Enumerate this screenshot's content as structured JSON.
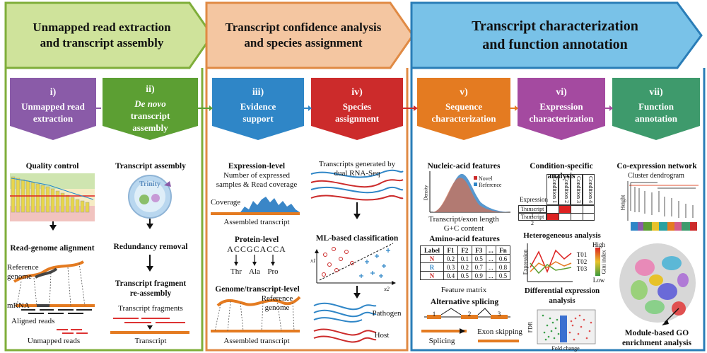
{
  "sections": [
    {
      "title_line1": "Unmapped read extraction",
      "title_line2": "and transcript assembly"
    },
    {
      "title_line1": "Transcript confidence analysis",
      "title_line2": "and species assignment"
    },
    {
      "title_line1": "Transcript characterization",
      "title_line2": "and function annotation"
    }
  ],
  "steps": [
    {
      "num": "i)",
      "label_line1": "Unmapped read",
      "label_line2": "extraction"
    },
    {
      "num": "ii)",
      "label_line1": "De novo",
      "label_line2": "transcript",
      "label_line3": "assembly"
    },
    {
      "num": "iii)",
      "label_line1": "Evidence",
      "label_line2": "support"
    },
    {
      "num": "iv)",
      "label_line1": "Species",
      "label_line2": "assignment"
    },
    {
      "num": "v)",
      "label_line1": "Sequence",
      "label_line2": "characterization"
    },
    {
      "num": "vi)",
      "label_line1": "Expression",
      "label_line2": "characterization"
    },
    {
      "num": "vii)",
      "label_line1": "Function",
      "label_line2": "annotation"
    }
  ],
  "col1": {
    "quality_control": "Quality control",
    "read_genome_alignment": "Read-genome alignment",
    "reference_genome": "Reference genome",
    "mrna": "mRNA",
    "aligned_reads": "Aligned reads",
    "unmapped_reads": "Unmapped reads"
  },
  "col2": {
    "transcript_assembly": "Transcript assembly",
    "trinity_logo": "Trinity",
    "redundancy_removal": "Redundancy removal",
    "fragment_reassembly_line1": "Transcript fragment",
    "fragment_reassembly_line2": "re-assembly",
    "transcript_fragments": "Transcript fragments",
    "transcript": "Transcript"
  },
  "col3": {
    "expression_level": "Expression-level",
    "expressed_desc_line1": "Number of expressed",
    "expressed_desc_line2": "samples & Read coverage",
    "coverage": "Coverage",
    "assembled_transcript": "Assembled transcript",
    "protein_level": "Protein-level",
    "codon_seq": "ACCGCACCA",
    "aa1": "Thr",
    "aa2": "Ala",
    "aa3": "Pro",
    "genome_level": "Genome/transcript-level",
    "reference_genome": "Reference genome",
    "assembled_transcript2": "Assembled transcript"
  },
  "col4": {
    "generated_line1": "Transcripts generated by",
    "generated_line2": "dual RNA-Seq",
    "ml_classification": "ML-based classification",
    "x1": "x1",
    "x2": "x2",
    "pathogen": "Pathogen",
    "host": "Host"
  },
  "col5": {
    "nucleic_acid": "Nucleic-acid features",
    "density": "Density",
    "novel": "Novel",
    "reference": "Reference",
    "transcript_exon_length": "Transcript/exon length",
    "gc_content": "G+C content",
    "amino_acid": "Amino-acid features",
    "table_headers": [
      "Label",
      "F1",
      "F2",
      "F3",
      "...",
      "Fn"
    ],
    "table_rows": [
      [
        "N",
        "0.2",
        "0.1",
        "0.5",
        "...",
        "0.6"
      ],
      [
        "R",
        "0.3",
        "0.2",
        "0.7",
        "...",
        "0.8"
      ],
      [
        "N",
        "0.4",
        "0.5",
        "0.9",
        "...",
        "0.5"
      ]
    ],
    "feature_matrix": "Feature matrix",
    "alt_splicing": "Alternative splicing",
    "splicing": "Splicing",
    "exon_skipping": "Exon skipping",
    "exon1": "1",
    "exon2": "2",
    "exon3": "3"
  },
  "col6": {
    "condition_specific_line1": "Condition-specific",
    "condition_specific_line2": "analysis",
    "expression": "Expression",
    "conditions": [
      "Condition 1",
      "Condition 2",
      "Condition 3",
      "Condition 4"
    ],
    "transcripts": [
      "Transcript 1",
      "Transcript 2"
    ],
    "heterogeneous": "Heterogeneous analysis",
    "expression_axis": "Expression",
    "t_labels": [
      "T01",
      "T02",
      "T03"
    ],
    "high": "High",
    "low": "Low",
    "gini": "Gini index",
    "de_line1": "Differential expression",
    "de_line2": "analysis",
    "fdr": "FDR",
    "fold_change": "Fold change"
  },
  "col7": {
    "coexpression": "Co-expression network",
    "cluster_dendrogram": "Cluster dendrogram",
    "height": "Height",
    "module_go_line1": "Module-based GO",
    "module_go_line2": "enrichment analysis"
  },
  "colors": {
    "green_light": "#cfe39b",
    "green_border": "#7fae3a",
    "orange_light": "#f4c6a1",
    "orange_border": "#e08a44",
    "blue_light": "#79c2e8",
    "blue_border": "#2a7db7",
    "step1": "#8a5ba8",
    "step2": "#5c9f33",
    "step3": "#2f86c7",
    "step4": "#cc2b2b",
    "step5": "#e47b21",
    "step6": "#a44aa0",
    "step7": "#3e9a6c"
  }
}
